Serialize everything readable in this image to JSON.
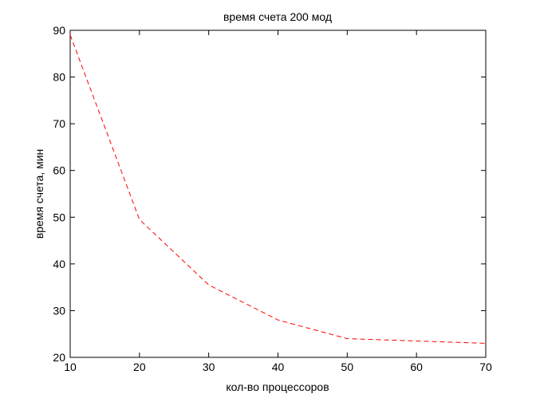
{
  "chart_data": {
    "type": "line",
    "title": "время счета 200 мод",
    "xlabel": "кол-во процессоров",
    "ylabel": "время счета, мин",
    "xlim": [
      10,
      70
    ],
    "ylim": [
      20,
      90
    ],
    "xticks": [
      10,
      20,
      30,
      40,
      50,
      60,
      70
    ],
    "yticks": [
      20,
      30,
      40,
      50,
      60,
      70,
      80,
      90
    ],
    "grid": false,
    "series": [
      {
        "color": "#ff0000",
        "line_style": "dashed",
        "x": [
          10,
          20,
          30,
          40,
          50,
          60,
          70
        ],
        "y": [
          89,
          49.5,
          35.5,
          28,
          24,
          23.5,
          23
        ]
      }
    ]
  }
}
